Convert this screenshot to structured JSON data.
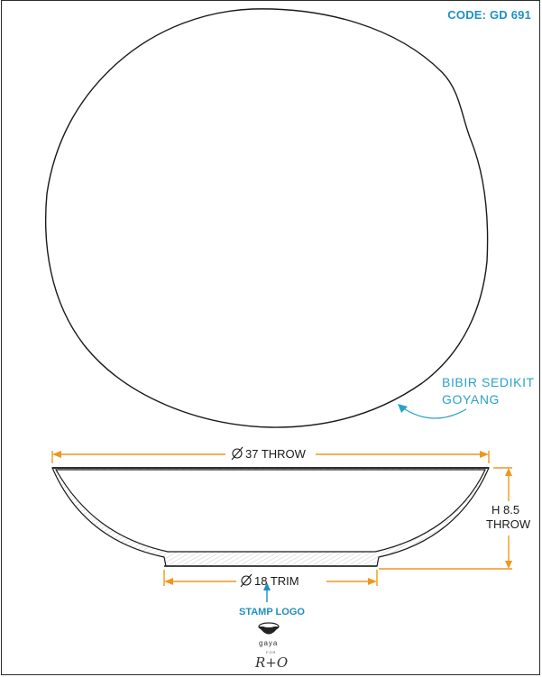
{
  "code": "CODE: GD 691",
  "note": {
    "line1": "BIBIR SEDIKIT",
    "line2": "GOYANG"
  },
  "dimensions": {
    "diameter_top": "37 THROW",
    "diameter_bottom": "18 TRIM",
    "height_line1": "H 8.5",
    "height_line2": "THROW"
  },
  "stamp_label": "STAMP LOGO",
  "logo": {
    "name": "gaya",
    "for": "FOR",
    "mark": "R+O"
  },
  "colors": {
    "dimension": "#f0961e",
    "note": "#2aa3c8",
    "code": "#1f8fc4",
    "line": "#1a1a1a"
  }
}
